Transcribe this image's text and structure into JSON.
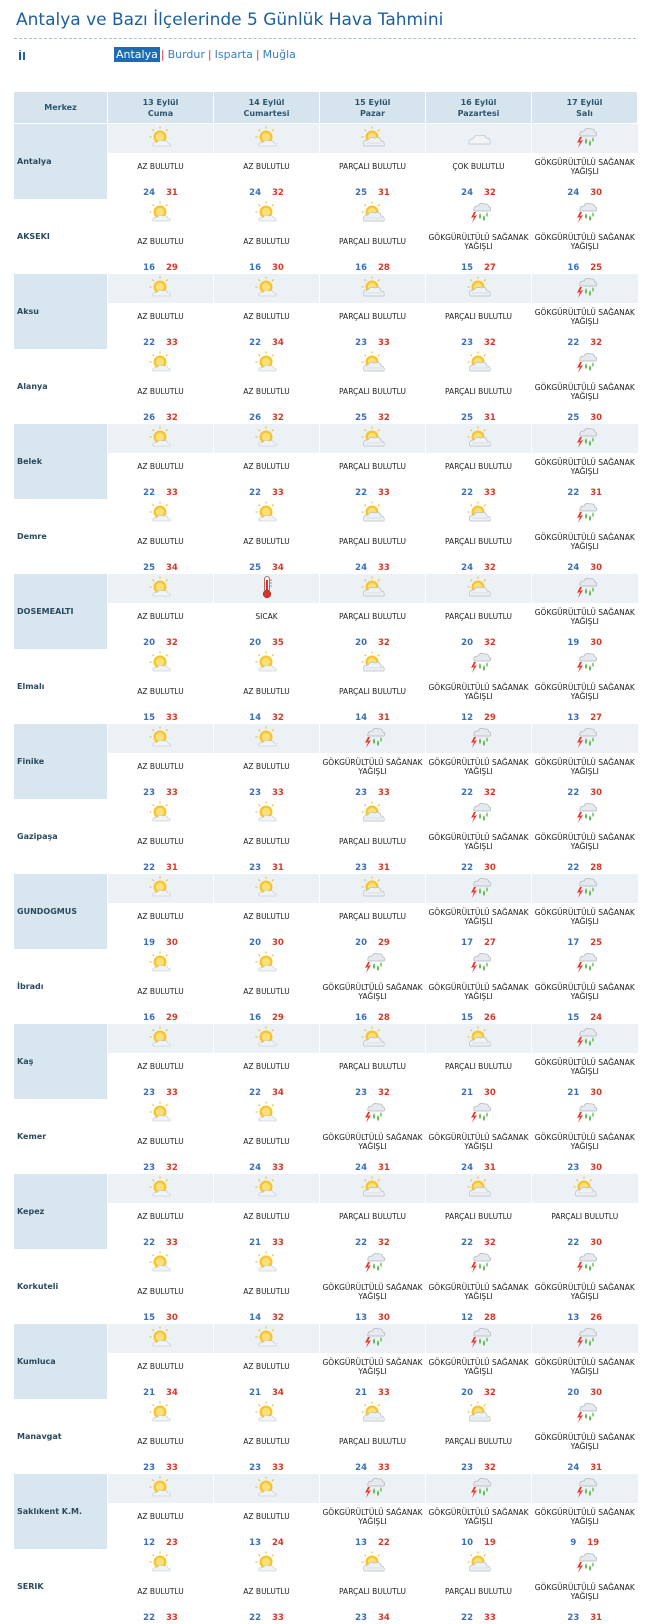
{
  "page": {
    "title": "Antalya ve Bazı İlçelerinde 5 Günlük Hava Tahmini"
  },
  "province_nav": {
    "label": "İl",
    "items": [
      {
        "label": "Antalya",
        "active": true
      },
      {
        "label": "Burdur",
        "active": false
      },
      {
        "label": "Isparta",
        "active": false
      },
      {
        "label": "Muğla",
        "active": false
      }
    ]
  },
  "table": {
    "merkez_header": "Merkez",
    "days": [
      {
        "date": "13 Eylül",
        "weekday": "Cuma"
      },
      {
        "date": "14 Eylül",
        "weekday": "Cumartesi"
      },
      {
        "date": "15 Eylül",
        "weekday": "Pazar"
      },
      {
        "date": "16 Eylül",
        "weekday": "Pazartesi"
      },
      {
        "date": "17 Eylül",
        "weekday": "Salı"
      }
    ],
    "stations": [
      {
        "name": "Antalya",
        "forecasts": [
          {
            "icon": "sun-cloud-icon",
            "desc": "AZ BULUTLU",
            "min": "24",
            "max": "31"
          },
          {
            "icon": "sun-cloud-icon",
            "desc": "AZ BULUTLU",
            "min": "24",
            "max": "32"
          },
          {
            "icon": "partly-cloudy-icon",
            "desc": "PARÇALI BULUTLU",
            "min": "25",
            "max": "31"
          },
          {
            "icon": "cloud-icon",
            "desc": "ÇOK BULUTLU",
            "min": "24",
            "max": "32"
          },
          {
            "icon": "thunderstorm-icon",
            "desc": "GÖKGÜRÜLTÜLÜ SAĞANAK YAĞIŞLI",
            "min": "24",
            "max": "30"
          }
        ]
      },
      {
        "name": "AKSEKI",
        "forecasts": [
          {
            "icon": "sun-cloud-icon",
            "desc": "AZ BULUTLU",
            "min": "16",
            "max": "29"
          },
          {
            "icon": "sun-cloud-icon",
            "desc": "AZ BULUTLU",
            "min": "16",
            "max": "30"
          },
          {
            "icon": "partly-cloudy-icon",
            "desc": "PARÇALI BULUTLU",
            "min": "16",
            "max": "28"
          },
          {
            "icon": "thunderstorm-icon",
            "desc": "GÖKGÜRÜLTÜLÜ SAĞANAK YAĞIŞLI",
            "min": "15",
            "max": "27"
          },
          {
            "icon": "thunderstorm-icon",
            "desc": "GÖKGÜRÜLTÜLÜ SAĞANAK YAĞIŞLI",
            "min": "16",
            "max": "25"
          }
        ]
      },
      {
        "name": "Aksu",
        "forecasts": [
          {
            "icon": "sun-cloud-icon",
            "desc": "AZ BULUTLU",
            "min": "22",
            "max": "33"
          },
          {
            "icon": "sun-cloud-icon",
            "desc": "AZ BULUTLU",
            "min": "22",
            "max": "34"
          },
          {
            "icon": "partly-cloudy-icon",
            "desc": "PARÇALI BULUTLU",
            "min": "23",
            "max": "33"
          },
          {
            "icon": "partly-cloudy-icon",
            "desc": "PARÇALI BULUTLU",
            "min": "23",
            "max": "32"
          },
          {
            "icon": "thunderstorm-icon",
            "desc": "GÖKGÜRÜLTÜLÜ SAĞANAK YAĞIŞLI",
            "min": "22",
            "max": "32"
          }
        ]
      },
      {
        "name": "Alanya",
        "forecasts": [
          {
            "icon": "sun-cloud-icon",
            "desc": "AZ BULUTLU",
            "min": "26",
            "max": "32"
          },
          {
            "icon": "sun-cloud-icon",
            "desc": "AZ BULUTLU",
            "min": "26",
            "max": "32"
          },
          {
            "icon": "partly-cloudy-icon",
            "desc": "PARÇALI BULUTLU",
            "min": "25",
            "max": "32"
          },
          {
            "icon": "partly-cloudy-icon",
            "desc": "PARÇALI BULUTLU",
            "min": "25",
            "max": "31"
          },
          {
            "icon": "thunderstorm-icon",
            "desc": "GÖKGÜRÜLTÜLÜ SAĞANAK YAĞIŞLI",
            "min": "25",
            "max": "30"
          }
        ]
      },
      {
        "name": "Belek",
        "forecasts": [
          {
            "icon": "sun-cloud-icon",
            "desc": "AZ BULUTLU",
            "min": "22",
            "max": "33"
          },
          {
            "icon": "sun-cloud-icon",
            "desc": "AZ BULUTLU",
            "min": "22",
            "max": "33"
          },
          {
            "icon": "partly-cloudy-icon",
            "desc": "PARÇALI BULUTLU",
            "min": "22",
            "max": "33"
          },
          {
            "icon": "partly-cloudy-icon",
            "desc": "PARÇALI BULUTLU",
            "min": "22",
            "max": "33"
          },
          {
            "icon": "thunderstorm-icon",
            "desc": "GÖKGÜRÜLTÜLÜ SAĞANAK YAĞIŞLI",
            "min": "22",
            "max": "31"
          }
        ]
      },
      {
        "name": "Demre",
        "forecasts": [
          {
            "icon": "sun-cloud-icon",
            "desc": "AZ BULUTLU",
            "min": "25",
            "max": "34"
          },
          {
            "icon": "sun-cloud-icon",
            "desc": "AZ BULUTLU",
            "min": "25",
            "max": "34"
          },
          {
            "icon": "partly-cloudy-icon",
            "desc": "PARÇALI BULUTLU",
            "min": "24",
            "max": "33"
          },
          {
            "icon": "partly-cloudy-icon",
            "desc": "PARÇALI BULUTLU",
            "min": "24",
            "max": "32"
          },
          {
            "icon": "thunderstorm-icon",
            "desc": "GÖKGÜRÜLTÜLÜ SAĞANAK YAĞIŞLI",
            "min": "24",
            "max": "30"
          }
        ]
      },
      {
        "name": "DOSEMEALTI",
        "forecasts": [
          {
            "icon": "sun-cloud-icon",
            "desc": "AZ BULUTLU",
            "min": "20",
            "max": "32"
          },
          {
            "icon": "thermometer-icon",
            "desc": "SICAK",
            "min": "20",
            "max": "35"
          },
          {
            "icon": "partly-cloudy-icon",
            "desc": "PARÇALI BULUTLU",
            "min": "20",
            "max": "32"
          },
          {
            "icon": "partly-cloudy-icon",
            "desc": "PARÇALI BULUTLU",
            "min": "20",
            "max": "32"
          },
          {
            "icon": "thunderstorm-icon",
            "desc": "GÖKGÜRÜLTÜLÜ SAĞANAK YAĞIŞLI",
            "min": "19",
            "max": "30"
          }
        ]
      },
      {
        "name": "Elmalı",
        "forecasts": [
          {
            "icon": "sun-cloud-icon",
            "desc": "AZ BULUTLU",
            "min": "15",
            "max": "33"
          },
          {
            "icon": "sun-cloud-icon",
            "desc": "AZ BULUTLU",
            "min": "14",
            "max": "32"
          },
          {
            "icon": "partly-cloudy-icon",
            "desc": "PARÇALI BULUTLU",
            "min": "14",
            "max": "31"
          },
          {
            "icon": "thunderstorm-icon",
            "desc": "GÖKGÜRÜLTÜLÜ SAĞANAK YAĞIŞLI",
            "min": "12",
            "max": "29"
          },
          {
            "icon": "thunderstorm-icon",
            "desc": "GÖKGÜRÜLTÜLÜ SAĞANAK YAĞIŞLI",
            "min": "13",
            "max": "27"
          }
        ]
      },
      {
        "name": "Finike",
        "forecasts": [
          {
            "icon": "sun-cloud-icon",
            "desc": "AZ BULUTLU",
            "min": "23",
            "max": "33"
          },
          {
            "icon": "sun-cloud-icon",
            "desc": "AZ BULUTLU",
            "min": "23",
            "max": "33"
          },
          {
            "icon": "thunderstorm-icon",
            "desc": "GÖKGÜRÜLTÜLÜ SAĞANAK YAĞIŞLI",
            "min": "23",
            "max": "33"
          },
          {
            "icon": "thunderstorm-icon",
            "desc": "GÖKGÜRÜLTÜLÜ SAĞANAK YAĞIŞLI",
            "min": "22",
            "max": "32"
          },
          {
            "icon": "thunderstorm-icon",
            "desc": "GÖKGÜRÜLTÜLÜ SAĞANAK YAĞIŞLI",
            "min": "22",
            "max": "30"
          }
        ]
      },
      {
        "name": "Gazipaşa",
        "forecasts": [
          {
            "icon": "sun-cloud-icon",
            "desc": "AZ BULUTLU",
            "min": "22",
            "max": "31"
          },
          {
            "icon": "sun-cloud-icon",
            "desc": "AZ BULUTLU",
            "min": "23",
            "max": "31"
          },
          {
            "icon": "partly-cloudy-icon",
            "desc": "PARÇALI BULUTLU",
            "min": "23",
            "max": "31"
          },
          {
            "icon": "thunderstorm-icon",
            "desc": "GÖKGÜRÜLTÜLÜ SAĞANAK YAĞIŞLI",
            "min": "22",
            "max": "30"
          },
          {
            "icon": "thunderstorm-icon",
            "desc": "GÖKGÜRÜLTÜLÜ SAĞANAK YAĞIŞLI",
            "min": "22",
            "max": "28"
          }
        ]
      },
      {
        "name": "GUNDOGMUS",
        "forecasts": [
          {
            "icon": "sun-cloud-icon",
            "desc": "AZ BULUTLU",
            "min": "19",
            "max": "30"
          },
          {
            "icon": "sun-cloud-icon",
            "desc": "AZ BULUTLU",
            "min": "20",
            "max": "30"
          },
          {
            "icon": "partly-cloudy-icon",
            "desc": "PARÇALI BULUTLU",
            "min": "20",
            "max": "29"
          },
          {
            "icon": "thunderstorm-icon",
            "desc": "GÖKGÜRÜLTÜLÜ SAĞANAK YAĞIŞLI",
            "min": "17",
            "max": "27"
          },
          {
            "icon": "thunderstorm-icon",
            "desc": "GÖKGÜRÜLTÜLÜ SAĞANAK YAĞIŞLI",
            "min": "17",
            "max": "25"
          }
        ]
      },
      {
        "name": "İbradı",
        "forecasts": [
          {
            "icon": "sun-cloud-icon",
            "desc": "AZ BULUTLU",
            "min": "16",
            "max": "29"
          },
          {
            "icon": "sun-cloud-icon",
            "desc": "AZ BULUTLU",
            "min": "16",
            "max": "29"
          },
          {
            "icon": "thunderstorm-icon",
            "desc": "GÖKGÜRÜLTÜLÜ SAĞANAK YAĞIŞLI",
            "min": "16",
            "max": "28"
          },
          {
            "icon": "thunderstorm-icon",
            "desc": "GÖKGÜRÜLTÜLÜ SAĞANAK YAĞIŞLI",
            "min": "15",
            "max": "26"
          },
          {
            "icon": "thunderstorm-icon",
            "desc": "GÖKGÜRÜLTÜLÜ SAĞANAK YAĞIŞLI",
            "min": "15",
            "max": "24"
          }
        ]
      },
      {
        "name": "Kaş",
        "forecasts": [
          {
            "icon": "sun-cloud-icon",
            "desc": "AZ BULUTLU",
            "min": "23",
            "max": "33"
          },
          {
            "icon": "sun-cloud-icon",
            "desc": "AZ BULUTLU",
            "min": "22",
            "max": "34"
          },
          {
            "icon": "partly-cloudy-icon",
            "desc": "PARÇALI BULUTLU",
            "min": "23",
            "max": "32"
          },
          {
            "icon": "partly-cloudy-icon",
            "desc": "PARÇALI BULUTLU",
            "min": "21",
            "max": "30"
          },
          {
            "icon": "thunderstorm-icon",
            "desc": "GÖKGÜRÜLTÜLÜ SAĞANAK YAĞIŞLI",
            "min": "21",
            "max": "30"
          }
        ]
      },
      {
        "name": "Kemer",
        "forecasts": [
          {
            "icon": "sun-cloud-icon",
            "desc": "AZ BULUTLU",
            "min": "23",
            "max": "32"
          },
          {
            "icon": "sun-cloud-icon",
            "desc": "AZ BULUTLU",
            "min": "24",
            "max": "33"
          },
          {
            "icon": "thunderstorm-icon",
            "desc": "GÖKGÜRÜLTÜLÜ SAĞANAK YAĞIŞLI",
            "min": "24",
            "max": "31"
          },
          {
            "icon": "thunderstorm-icon",
            "desc": "GÖKGÜRÜLTÜLÜ SAĞANAK YAĞIŞLI",
            "min": "24",
            "max": "31"
          },
          {
            "icon": "thunderstorm-icon",
            "desc": "GÖKGÜRÜLTÜLÜ SAĞANAK YAĞIŞLI",
            "min": "23",
            "max": "30"
          }
        ]
      },
      {
        "name": "Kepez",
        "forecasts": [
          {
            "icon": "sun-cloud-icon",
            "desc": "AZ BULUTLU",
            "min": "22",
            "max": "33"
          },
          {
            "icon": "sun-cloud-icon",
            "desc": "AZ BULUTLU",
            "min": "21",
            "max": "33"
          },
          {
            "icon": "partly-cloudy-icon",
            "desc": "PARÇALI BULUTLU",
            "min": "22",
            "max": "32"
          },
          {
            "icon": "partly-cloudy-icon",
            "desc": "PARÇALI BULUTLU",
            "min": "22",
            "max": "32"
          },
          {
            "icon": "partly-cloudy-icon",
            "desc": "PARÇALI BULUTLU",
            "min": "22",
            "max": "30"
          }
        ]
      },
      {
        "name": "Korkuteli",
        "forecasts": [
          {
            "icon": "sun-cloud-icon",
            "desc": "AZ BULUTLU",
            "min": "15",
            "max": "30"
          },
          {
            "icon": "sun-cloud-icon",
            "desc": "AZ BULUTLU",
            "min": "14",
            "max": "32"
          },
          {
            "icon": "thunderstorm-icon",
            "desc": "GÖKGÜRÜLTÜLÜ SAĞANAK YAĞIŞLI",
            "min": "13",
            "max": "30"
          },
          {
            "icon": "thunderstorm-icon",
            "desc": "GÖKGÜRÜLTÜLÜ SAĞANAK YAĞIŞLI",
            "min": "12",
            "max": "28"
          },
          {
            "icon": "thunderstorm-icon",
            "desc": "GÖKGÜRÜLTÜLÜ SAĞANAK YAĞIŞLI",
            "min": "13",
            "max": "26"
          }
        ]
      },
      {
        "name": "Kumluca",
        "forecasts": [
          {
            "icon": "sun-cloud-icon",
            "desc": "AZ BULUTLU",
            "min": "21",
            "max": "34"
          },
          {
            "icon": "sun-cloud-icon",
            "desc": "AZ BULUTLU",
            "min": "21",
            "max": "34"
          },
          {
            "icon": "thunderstorm-icon",
            "desc": "GÖKGÜRÜLTÜLÜ SAĞANAK YAĞIŞLI",
            "min": "21",
            "max": "33"
          },
          {
            "icon": "thunderstorm-icon",
            "desc": "GÖKGÜRÜLTÜLÜ SAĞANAK YAĞIŞLI",
            "min": "20",
            "max": "32"
          },
          {
            "icon": "thunderstorm-icon",
            "desc": "GÖKGÜRÜLTÜLÜ SAĞANAK YAĞIŞLI",
            "min": "20",
            "max": "30"
          }
        ]
      },
      {
        "name": "Manavgat",
        "forecasts": [
          {
            "icon": "sun-cloud-icon",
            "desc": "AZ BULUTLU",
            "min": "23",
            "max": "33"
          },
          {
            "icon": "sun-cloud-icon",
            "desc": "AZ BULUTLU",
            "min": "23",
            "max": "33"
          },
          {
            "icon": "partly-cloudy-icon",
            "desc": "PARÇALI BULUTLU",
            "min": "24",
            "max": "33"
          },
          {
            "icon": "partly-cloudy-icon",
            "desc": "PARÇALI BULUTLU",
            "min": "23",
            "max": "32"
          },
          {
            "icon": "thunderstorm-icon",
            "desc": "GÖKGÜRÜLTÜLÜ SAĞANAK YAĞIŞLI",
            "min": "24",
            "max": "31"
          }
        ]
      },
      {
        "name": "Saklıkent K.M.",
        "forecasts": [
          {
            "icon": "sun-cloud-icon",
            "desc": "AZ BULUTLU",
            "min": "12",
            "max": "23"
          },
          {
            "icon": "sun-cloud-icon",
            "desc": "AZ BULUTLU",
            "min": "13",
            "max": "24"
          },
          {
            "icon": "thunderstorm-icon",
            "desc": "GÖKGÜRÜLTÜLÜ SAĞANAK YAĞIŞLI",
            "min": "13",
            "max": "22"
          },
          {
            "icon": "thunderstorm-icon",
            "desc": "GÖKGÜRÜLTÜLÜ SAĞANAK YAĞIŞLI",
            "min": "10",
            "max": "19"
          },
          {
            "icon": "thunderstorm-icon",
            "desc": "GÖKGÜRÜLTÜLÜ SAĞANAK YAĞIŞLI",
            "min": "9",
            "max": "19"
          }
        ]
      },
      {
        "name": "SERIK",
        "forecasts": [
          {
            "icon": "sun-cloud-icon",
            "desc": "AZ BULUTLU",
            "min": "22",
            "max": "33"
          },
          {
            "icon": "sun-cloud-icon",
            "desc": "AZ BULUTLU",
            "min": "22",
            "max": "33"
          },
          {
            "icon": "partly-cloudy-icon",
            "desc": "PARÇALI BULUTLU",
            "min": "23",
            "max": "34"
          },
          {
            "icon": "partly-cloudy-icon",
            "desc": "PARÇALI BULUTLU",
            "min": "22",
            "max": "33"
          },
          {
            "icon": "thunderstorm-icon",
            "desc": "GÖKGÜRÜLTÜLÜ SAĞANAK YAĞIŞLI",
            "min": "23",
            "max": "31"
          }
        ]
      }
    ]
  },
  "colors": {
    "title": "#1c5f9e",
    "header_bg": "#d6e4ee",
    "temp_min": "#3b6fb6",
    "temp_max": "#d23a2a",
    "nav_active": "#1c6bb4"
  }
}
